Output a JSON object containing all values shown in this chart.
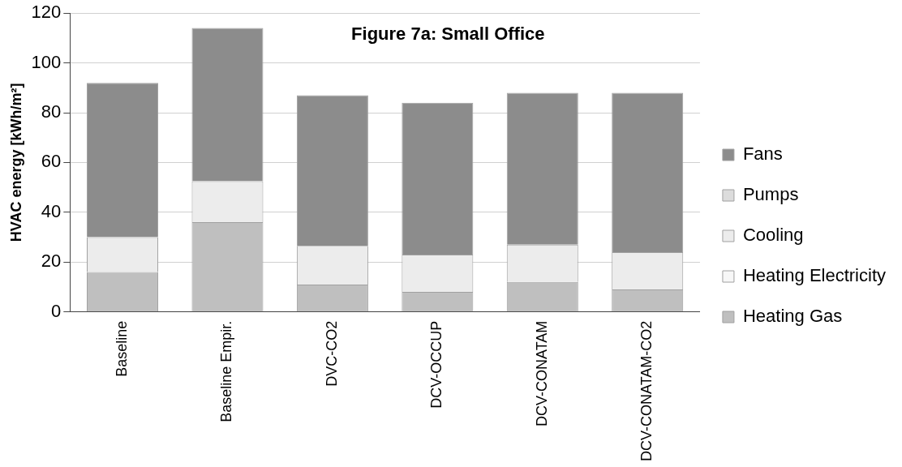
{
  "chart_data": {
    "type": "bar",
    "title": "Figure 7a: Small Office",
    "ylabel": "HVAC energy [kWh/m²]",
    "stacked": true,
    "categories": [
      "Baseline",
      "Baseline Empir.",
      "DVC-CO2",
      "DCV-OCCUP",
      "DCV-CONATAM",
      "DCV-CONATAM-CO2"
    ],
    "series": [
      {
        "name": "Heating Gas",
        "color": "#bfbfbf",
        "values": [
          16,
          36,
          11,
          8,
          12,
          9
        ]
      },
      {
        "name": "Heating Electricity",
        "color": "#f7f7f7",
        "values": [
          0,
          0,
          0,
          0,
          0,
          0
        ]
      },
      {
        "name": "Cooling",
        "color": "#ececec",
        "values": [
          14,
          16.5,
          15.5,
          15,
          15,
          15
        ]
      },
      {
        "name": "Pumps",
        "color": "#dcdcdc",
        "values": [
          0,
          0,
          0,
          0,
          0,
          0
        ]
      },
      {
        "name": "Fans",
        "color": "#8c8c8c",
        "values": [
          62,
          61.5,
          60.5,
          61,
          61,
          64
        ]
      }
    ],
    "ylim": [
      0,
      120
    ],
    "yticks": [
      0,
      20,
      40,
      60,
      80,
      100,
      120
    ],
    "grid": "y",
    "legend": "right"
  }
}
